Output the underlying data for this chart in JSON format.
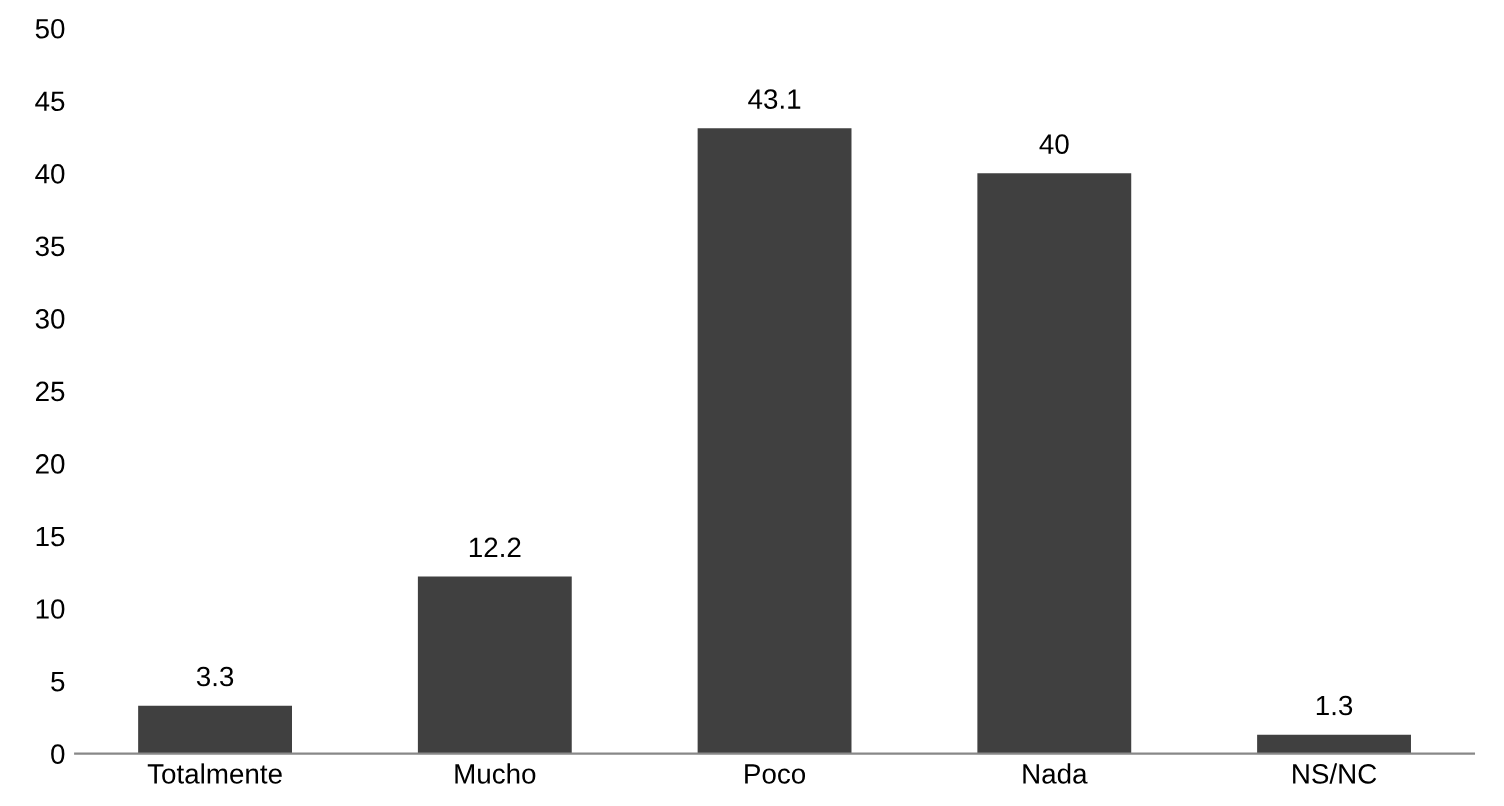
{
  "chart_data": {
    "type": "bar",
    "categories": [
      "Totalmente",
      "Mucho",
      "Poco",
      "Nada",
      "NS/NC"
    ],
    "values": [
      3.3,
      12.2,
      43.1,
      40,
      1.3
    ],
    "color": "#404040",
    "ylim": [
      0,
      50
    ],
    "yticks": [
      0,
      5,
      10,
      15,
      20,
      25,
      30,
      35,
      40,
      45,
      50
    ],
    "data_labels": true,
    "grid": false
  }
}
